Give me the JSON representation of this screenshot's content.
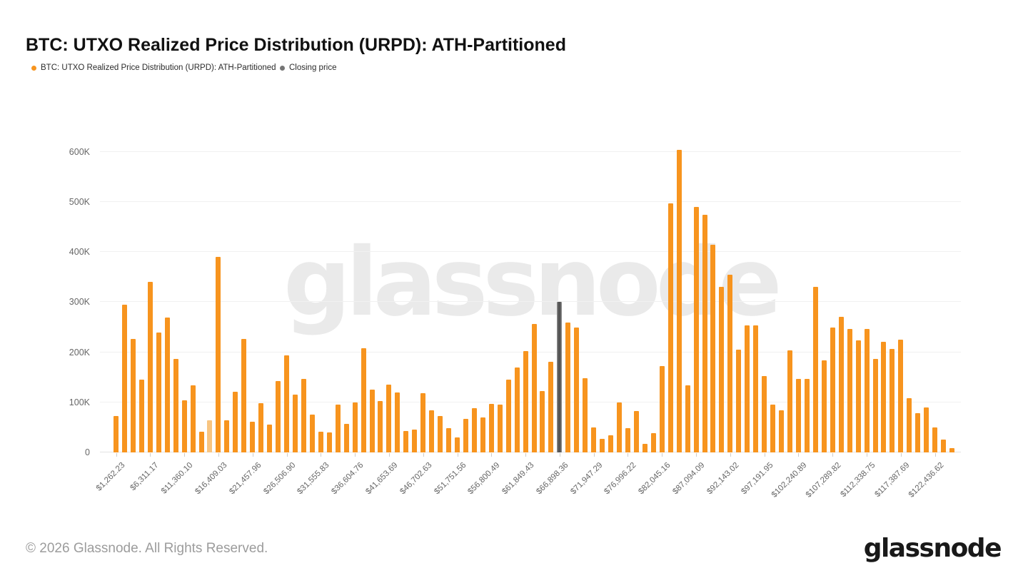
{
  "page": {
    "title": "BTC: UTXO Realized Price Distribution (URPD): ATH-Partitioned",
    "watermark_text": "glassnode",
    "footer_copyright": "© 2026 Glassnode. All Rights Reserved.",
    "brand_logo_text": "glassnode"
  },
  "legend": {
    "items": [
      {
        "label": "BTC: UTXO Realized Price Distribution (URPD): ATH-Partitioned",
        "color": "#F7941E"
      },
      {
        "label": "Closing price",
        "color": "#757575"
      }
    ]
  },
  "chart_data": {
    "type": "bar",
    "title": "BTC: UTXO Realized Price Distribution (URPD): ATH-Partitioned",
    "xlabel": "",
    "ylabel": "",
    "grid": "horizontal",
    "legend_position": "top-left",
    "ylim": [
      0,
      600000
    ],
    "y_tick_values": [
      0,
      100000,
      200000,
      300000,
      400000,
      500000,
      600000
    ],
    "y_tick_labels": [
      "0",
      "100K",
      "200K",
      "300K",
      "400K",
      "500K",
      "600K"
    ],
    "x_tick_every_n_bars": 4,
    "bin_width_usd": 1262.23,
    "x_tick_labels": [
      "$1,262.23",
      "$6,311.17",
      "$11,360.10",
      "$16,409.03",
      "$21,457.96",
      "$26,506.90",
      "$31,555.83",
      "$36,604.76",
      "$41,653.69",
      "$46,702.63",
      "$51,751.56",
      "$56,800.49",
      "$61,849.43",
      "$66,898.36",
      "$71,947.29",
      "$76,996.22",
      "$82,045.16",
      "$87,094.09",
      "$92,143.02",
      "$97,191.95",
      "$102,240.89",
      "$107,289.82",
      "$112,338.75",
      "$117,387.69",
      "$122,436.62"
    ],
    "series": [
      {
        "name": "BTC: UTXO Realized Price Distribution (URPD): ATH-Partitioned",
        "color": "#F7941E",
        "values": [
          73000,
          295000,
          227000,
          145000,
          341000,
          239000,
          269000,
          186000,
          104000,
          134000,
          42000,
          64000,
          391000,
          64000,
          121000,
          226000,
          62000,
          98000,
          56000,
          142000,
          194000,
          116000,
          147000,
          76000,
          41000,
          40000,
          95000,
          57000,
          100000,
          208000,
          126000,
          103000,
          135000,
          119000,
          43000,
          45000,
          118000,
          84000,
          72000,
          48000,
          30000,
          67000,
          89000,
          70000,
          97000,
          95000,
          145000,
          170000,
          203000,
          257000,
          122000,
          181000,
          null,
          259000,
          250000,
          148000,
          50000,
          27000,
          34000,
          100000,
          49000,
          83000,
          17000,
          39000,
          172000,
          497000,
          604000,
          134000,
          490000,
          475000,
          414000,
          330000,
          354000,
          205000,
          254000,
          253000,
          153000,
          95000,
          84000,
          204000,
          147000,
          147000,
          330000,
          184000,
          249000,
          270000,
          246000,
          223000,
          247000,
          186000,
          221000,
          206000,
          225000,
          108000,
          79000,
          90000,
          50000,
          26000,
          9000
        ]
      }
    ],
    "closing_price": {
      "name": "Closing price",
      "bar_index": 52,
      "x_label": "$66,898.36",
      "value": 300000,
      "color": "#555555"
    },
    "highlight": {
      "light_orange_index": 11,
      "light_orange_color": "#F8C581"
    }
  }
}
